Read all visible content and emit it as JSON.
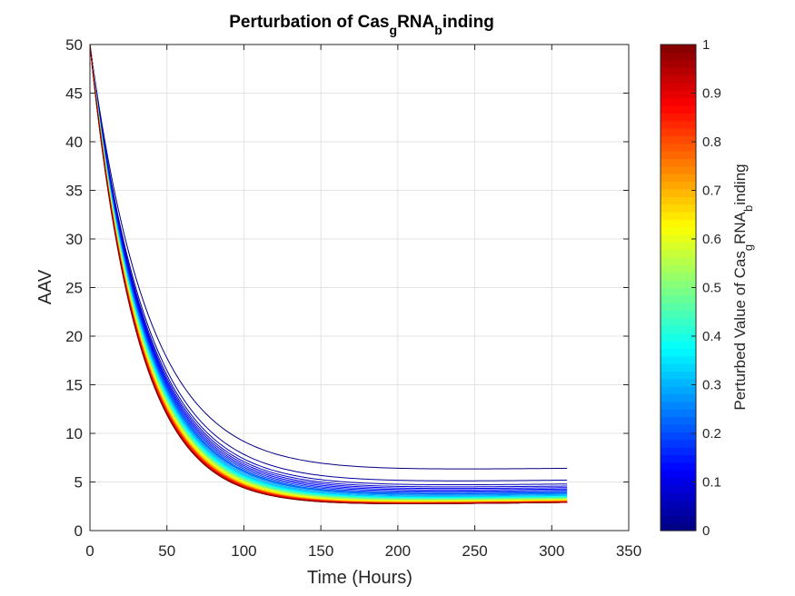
{
  "chart_data": {
    "type": "line",
    "title": {
      "main": "Perturbation of Cas",
      "sub1": "g",
      "mid": "RNA",
      "sub2": "b",
      "end": "inding"
    },
    "xlabel": "Time (Hours)",
    "ylabel": "AAV",
    "xlim": [
      0,
      350
    ],
    "ylim": [
      0,
      50
    ],
    "xticks": [
      "0",
      "50",
      "100",
      "150",
      "200",
      "250",
      "300",
      "350"
    ],
    "yticks": [
      "0",
      "5",
      "10",
      "15",
      "20",
      "25",
      "30",
      "35",
      "40",
      "45",
      "50"
    ],
    "grid": true,
    "colormap": "jet",
    "colorbar": {
      "label": {
        "pre": "Perturbed Value of Cas",
        "sub1": "g",
        "mid": "RNA",
        "sub2": "b",
        "end": "inding"
      },
      "range": [
        0,
        1
      ],
      "ticks": [
        "0",
        "0.1",
        "0.2",
        "0.3",
        "0.4",
        "0.5",
        "0.6",
        "0.7",
        "0.8",
        "0.9",
        "1"
      ]
    },
    "series_model": {
      "description": "One curve per perturbed value p in [0,1], colored by p",
      "count": 40,
      "x_end": 311,
      "y_start": 50,
      "endpoint_values_at_x_311": [
        6.4,
        5.8,
        5.4,
        5.0,
        4.7,
        4.5,
        4.3,
        4.1,
        3.9,
        3.8,
        3.6,
        3.5,
        3.4,
        3.3,
        3.2,
        3.1,
        3.0,
        3.0,
        2.9,
        2.9
      ],
      "sample_values_min_p": {
        "x": [
          0,
          50,
          100,
          150,
          200,
          250,
          311
        ],
        "y": [
          50,
          22.5,
          12.8,
          9.2,
          7.6,
          6.9,
          6.4
        ]
      },
      "sample_values_max_p": {
        "x": [
          0,
          50,
          100,
          150,
          200,
          250,
          311
        ],
        "y": [
          50,
          17.5,
          8.0,
          5.2,
          3.9,
          3.3,
          2.9
        ]
      }
    }
  }
}
